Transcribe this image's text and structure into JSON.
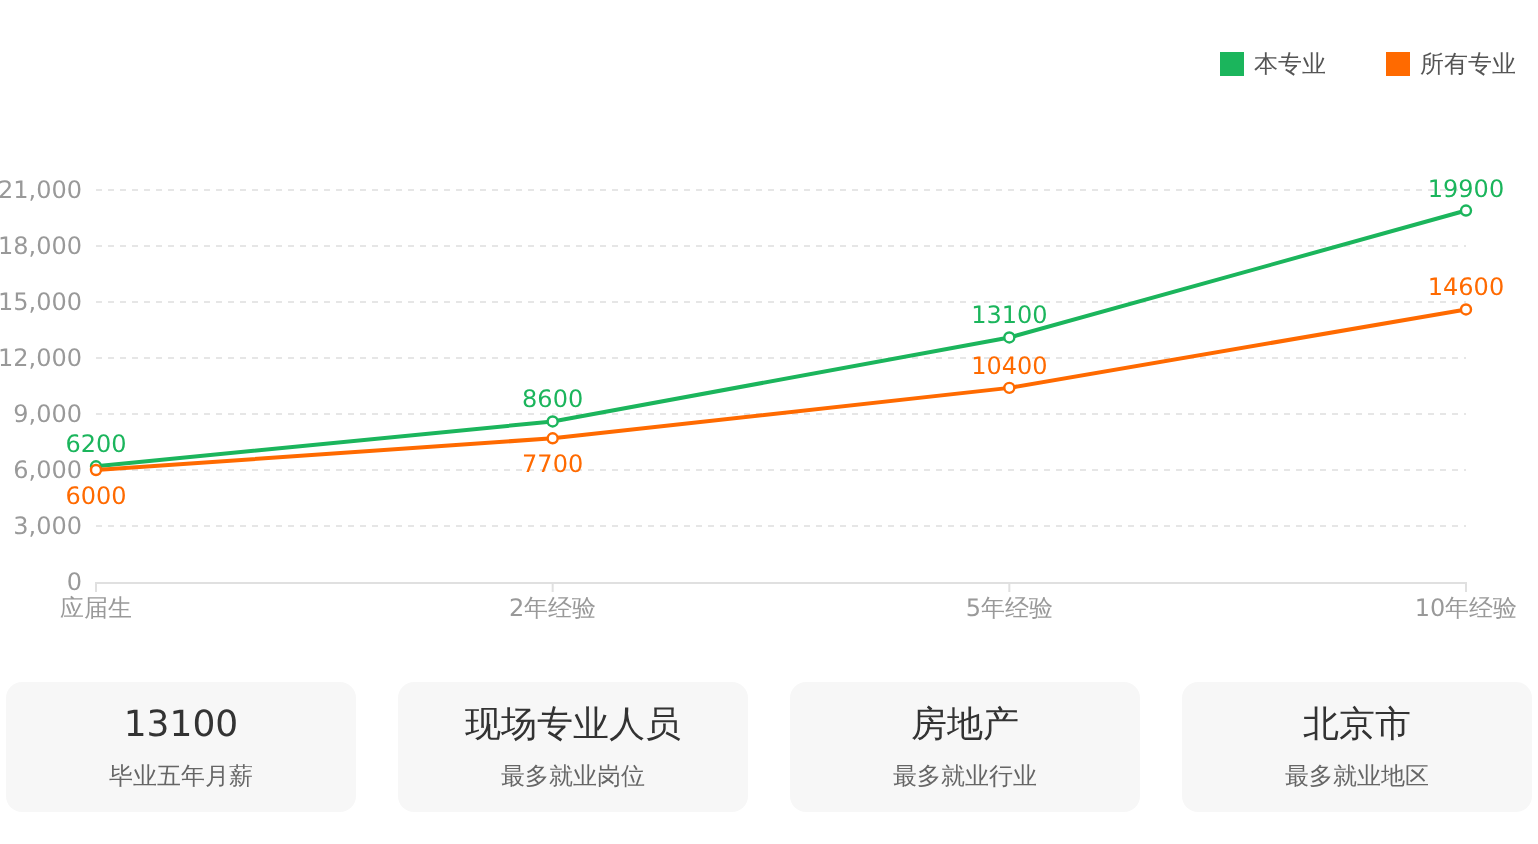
{
  "chart_data": [
    {
      "type": "line",
      "categories": [
        "应届生",
        "2年经验",
        "5年经验",
        "10年经验"
      ],
      "series": [
        {
          "name": "本专业",
          "color": "#1bb55c",
          "values": [
            6200,
            8600,
            13100,
            19900
          ]
        },
        {
          "name": "所有专业",
          "color": "#ff6a00",
          "values": [
            6000,
            7700,
            10400,
            14600
          ]
        }
      ],
      "ylim": [
        0,
        21000
      ],
      "yticks": [
        0,
        {
          "value": 3000,
          "label": "3,000"
        },
        {
          "value": 6000,
          "label": "6,000"
        },
        {
          "value": 9000,
          "label": "9,000"
        },
        {
          "value": 12000,
          "label": "12,000"
        },
        {
          "value": 15000,
          "label": "15,000"
        },
        {
          "value": 18000,
          "label": "18,000"
        },
        {
          "value": 21000,
          "label": "21,000"
        }
      ],
      "grid": "y",
      "legend": "top right",
      "marker": "circle",
      "line_style": "solid",
      "data_labels": true
    },
    {
      "type": "other",
      "title": "13100",
      "subtitle": "毕业五年月薪"
    },
    {
      "type": "other",
      "title": "现场专业人员",
      "subtitle": "最多就业岗位"
    },
    {
      "type": "other",
      "title": "房地产",
      "subtitle": "最多就业行业"
    },
    {
      "type": "other",
      "title": "北京市",
      "subtitle": "最多就业地区"
    }
  ]
}
